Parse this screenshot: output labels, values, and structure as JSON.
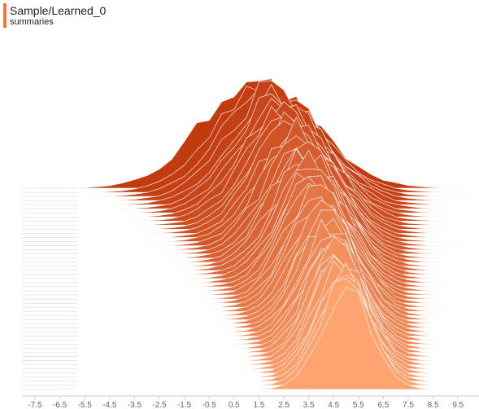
{
  "header": {
    "title": "Sample/Learned_0",
    "subtitle": "summaries"
  },
  "colors": {
    "accent": "#ff7043",
    "oldest": "#c23b0f",
    "newest": "#ffa470",
    "outline": "#ffffff",
    "baseline": "#d9d9d9",
    "axis": "#cccccc"
  },
  "chart_data": {
    "type": "area",
    "kind": "histogram-ridge",
    "num_slices": 50,
    "xlim": [
      -8,
      10
    ],
    "xticks": [
      -7.5,
      -6.5,
      -5.5,
      -4.5,
      -3.5,
      -2.5,
      -1.5,
      -0.5,
      0.5,
      1.5,
      2.5,
      3.5,
      4.5,
      5.5,
      6.5,
      7.5,
      8.5,
      9.5
    ],
    "xlabel": "",
    "ylabel": "",
    "grid": false,
    "distribution_mean": {
      "first": 1.6,
      "last": 5.0
    },
    "distribution_std": {
      "first": 2.2,
      "last": 1.0
    },
    "peak_x_first_slice": 1.5
  }
}
